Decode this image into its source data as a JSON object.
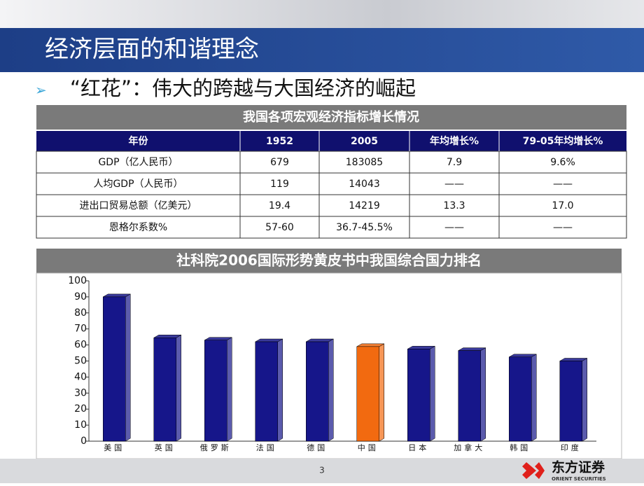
{
  "slide": {
    "title": "经济层面的和谐理念",
    "bullet": "“红花”：伟大的跨越与大国经济的崛起",
    "page_number": "3",
    "logo": {
      "name": "东方证券",
      "subtitle": "ORIENT SECURITIES"
    }
  },
  "table": {
    "title": "我国各项宏观经济指标增长情况",
    "header": [
      "年份",
      "1952",
      "2005",
      "年均增长%",
      "79-05年均增长%"
    ],
    "rows": [
      [
        "GDP（亿人民币）",
        "679",
        "183085",
        "7.9",
        "9.6%"
      ],
      [
        "人均GDP（人民币）",
        "119",
        "14043",
        "——",
        "——"
      ],
      [
        "进出口贸易总额（亿美元）",
        "19.4",
        "14219",
        "13.3",
        "17.0"
      ],
      [
        "恩格尔系数%",
        "57-60",
        "36.7-45.5%",
        "——",
        "——"
      ]
    ]
  },
  "chart_data": {
    "type": "bar",
    "title": "社科院2006国际形势黄皮书中我国综合国力排名",
    "categories": [
      "美国",
      "英国",
      "俄罗斯",
      "法国",
      "德国",
      "中国",
      "日本",
      "加拿大",
      "韩国",
      "印度"
    ],
    "values": [
      90,
      64.5,
      63,
      62,
      62,
      59,
      57.5,
      56.5,
      52.5,
      50
    ],
    "colors": [
      "#16168a",
      "#16168a",
      "#16168a",
      "#16168a",
      "#16168a",
      "#f26a10",
      "#16168a",
      "#16168a",
      "#16168a",
      "#16168a"
    ],
    "ylim": [
      0,
      100
    ],
    "yticks": [
      0,
      10,
      20,
      30,
      40,
      50,
      60,
      70,
      80,
      90,
      100
    ]
  }
}
